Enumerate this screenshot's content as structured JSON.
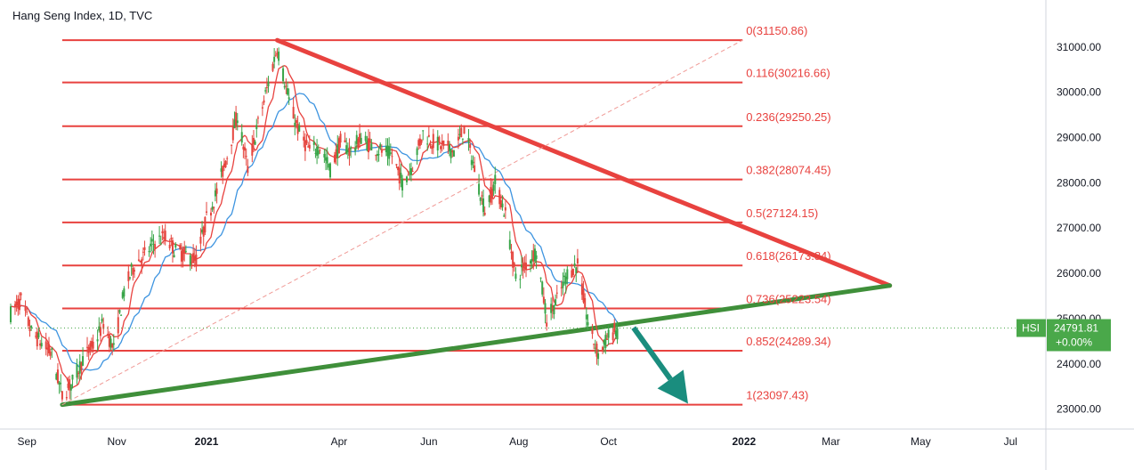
{
  "chart_data": {
    "type": "candlestick",
    "title": "Hang Seng Index, 1D, TVC",
    "y_axis": {
      "ticks": [
        23000,
        24000,
        25000,
        26000,
        27000,
        28000,
        29000,
        30000,
        31000
      ],
      "tick_labels": [
        "23000.00",
        "24000.00",
        "25000.00",
        "26000.00",
        "27000.00",
        "28000.00",
        "29000.00",
        "30000.00",
        "31000.00"
      ],
      "range": [
        22560,
        31960
      ]
    },
    "x_axis": {
      "range": [
        "2020-08-21",
        "2022-07-25"
      ],
      "ticks": [
        {
          "label": "Sep",
          "date": "2020-09-01",
          "bold": false
        },
        {
          "label": "Nov",
          "date": "2020-11-01",
          "bold": false
        },
        {
          "label": "2021",
          "date": "2021-01-01",
          "bold": true
        },
        {
          "label": "Apr",
          "date": "2021-04-01",
          "bold": false
        },
        {
          "label": "Jun",
          "date": "2021-06-01",
          "bold": false
        },
        {
          "label": "Aug",
          "date": "2021-08-01",
          "bold": false
        },
        {
          "label": "Oct",
          "date": "2021-10-01",
          "bold": false
        },
        {
          "label": "2022",
          "date": "2022-01-01",
          "bold": true
        },
        {
          "label": "Mar",
          "date": "2022-03-01",
          "bold": false
        },
        {
          "label": "May",
          "date": "2022-05-01",
          "bold": false
        },
        {
          "label": "Jul",
          "date": "2022-07-01",
          "bold": false
        }
      ]
    },
    "fibonacci_levels": [
      {
        "label": "0(31150.86)",
        "value": 31150.86
      },
      {
        "label": "0.116(30216.66)",
        "value": 30216.66
      },
      {
        "label": "0.236(29250.25)",
        "value": 29250.25
      },
      {
        "label": "0.382(28074.45)",
        "value": 28074.45
      },
      {
        "label": "0.5(27124.15)",
        "value": 27124.15
      },
      {
        "label": "0.618(26173.84)",
        "value": 26173.84
      },
      {
        "label": "0.736(25223.54)",
        "value": 25223.54
      },
      {
        "label": "0.852(24289.34)",
        "value": 24289.34
      },
      {
        "label": "1(23097.43)",
        "value": 23097.43
      }
    ],
    "fibonacci_span": {
      "start": "2020-09-25",
      "end": "2021-12-31"
    },
    "trendlines": [
      {
        "name": "resistance",
        "color": "#e8423f",
        "from": {
          "date": "2021-02-18",
          "value": 31150.86
        },
        "to": {
          "date": "2022-04-10",
          "value": 25730
        }
      },
      {
        "name": "support",
        "color": "#3f8f3a",
        "from": {
          "date": "2020-09-25",
          "value": 23097.43
        },
        "to": {
          "date": "2022-04-10",
          "value": 25730
        }
      },
      {
        "name": "fib-diagonal",
        "color": "#f09a96",
        "from": {
          "date": "2020-09-25",
          "value": 23097.43
        },
        "to": {
          "date": "2021-12-31",
          "value": 31150.86
        }
      }
    ],
    "arrow": {
      "color": "#1a8d7e",
      "from": {
        "date": "2021-10-18",
        "value": 24800
      },
      "to": {
        "date": "2021-11-24",
        "value": 23120
      }
    },
    "price_path": [
      [
        "2020-08-21",
        25110
      ],
      [
        "2020-08-28",
        25400
      ],
      [
        "2020-09-04",
        24700
      ],
      [
        "2020-09-11",
        24450
      ],
      [
        "2020-09-18",
        24200
      ],
      [
        "2020-09-25",
        23300
      ],
      [
        "2020-10-02",
        23600
      ],
      [
        "2020-10-09",
        24100
      ],
      [
        "2020-10-16",
        24400
      ],
      [
        "2020-10-23",
        24900
      ],
      [
        "2020-10-30",
        24300
      ],
      [
        "2020-11-06",
        25600
      ],
      [
        "2020-11-13",
        26200
      ],
      [
        "2020-11-20",
        26400
      ],
      [
        "2020-11-27",
        26700
      ],
      [
        "2020-12-04",
        26800
      ],
      [
        "2020-12-11",
        26500
      ],
      [
        "2020-12-18",
        26400
      ],
      [
        "2020-12-25",
        26300
      ],
      [
        "2021-01-01",
        27200
      ],
      [
        "2021-01-08",
        27800
      ],
      [
        "2021-01-15",
        28600
      ],
      [
        "2021-01-22",
        29500
      ],
      [
        "2021-01-29",
        28300
      ],
      [
        "2021-02-05",
        29300
      ],
      [
        "2021-02-12",
        30200
      ],
      [
        "2021-02-18",
        31000
      ],
      [
        "2021-02-26",
        29800
      ],
      [
        "2021-03-05",
        29100
      ],
      [
        "2021-03-12",
        28700
      ],
      [
        "2021-03-19",
        28800
      ],
      [
        "2021-03-26",
        28300
      ],
      [
        "2021-04-02",
        28900
      ],
      [
        "2021-04-09",
        28700
      ],
      [
        "2021-04-16",
        29000
      ],
      [
        "2021-04-23",
        28800
      ],
      [
        "2021-04-30",
        28700
      ],
      [
        "2021-05-07",
        28600
      ],
      [
        "2021-05-14",
        28000
      ],
      [
        "2021-05-21",
        28400
      ],
      [
        "2021-05-28",
        29100
      ],
      [
        "2021-06-04",
        28900
      ],
      [
        "2021-06-11",
        28800
      ],
      [
        "2021-06-18",
        28700
      ],
      [
        "2021-06-25",
        29200
      ],
      [
        "2021-07-02",
        28300
      ],
      [
        "2021-07-09",
        27400
      ],
      [
        "2021-07-16",
        28000
      ],
      [
        "2021-07-23",
        27300
      ],
      [
        "2021-07-30",
        25900
      ],
      [
        "2021-08-06",
        26200
      ],
      [
        "2021-08-13",
        26500
      ],
      [
        "2021-08-20",
        25000
      ],
      [
        "2021-08-27",
        25400
      ],
      [
        "2021-09-03",
        26000
      ],
      [
        "2021-09-10",
        26200
      ],
      [
        "2021-09-17",
        24900
      ],
      [
        "2021-09-24",
        24200
      ],
      [
        "2021-10-01",
        24600
      ],
      [
        "2021-10-07",
        24792
      ]
    ],
    "last_price": {
      "symbol": "HSI",
      "price": "24791.81",
      "change": "+0.00%",
      "value": 24791.81
    }
  },
  "colors": {
    "fib_line": "#e8423f",
    "resistance": "#e8423f",
    "support": "#3f8f3a",
    "arrow": "#1a8d7e",
    "ma_fast": "#e8423f",
    "ma_slow": "#3d94e0",
    "candle_up": "#38a548",
    "candle_down": "#e5453e",
    "tag_bg": "#4aa84a"
  }
}
